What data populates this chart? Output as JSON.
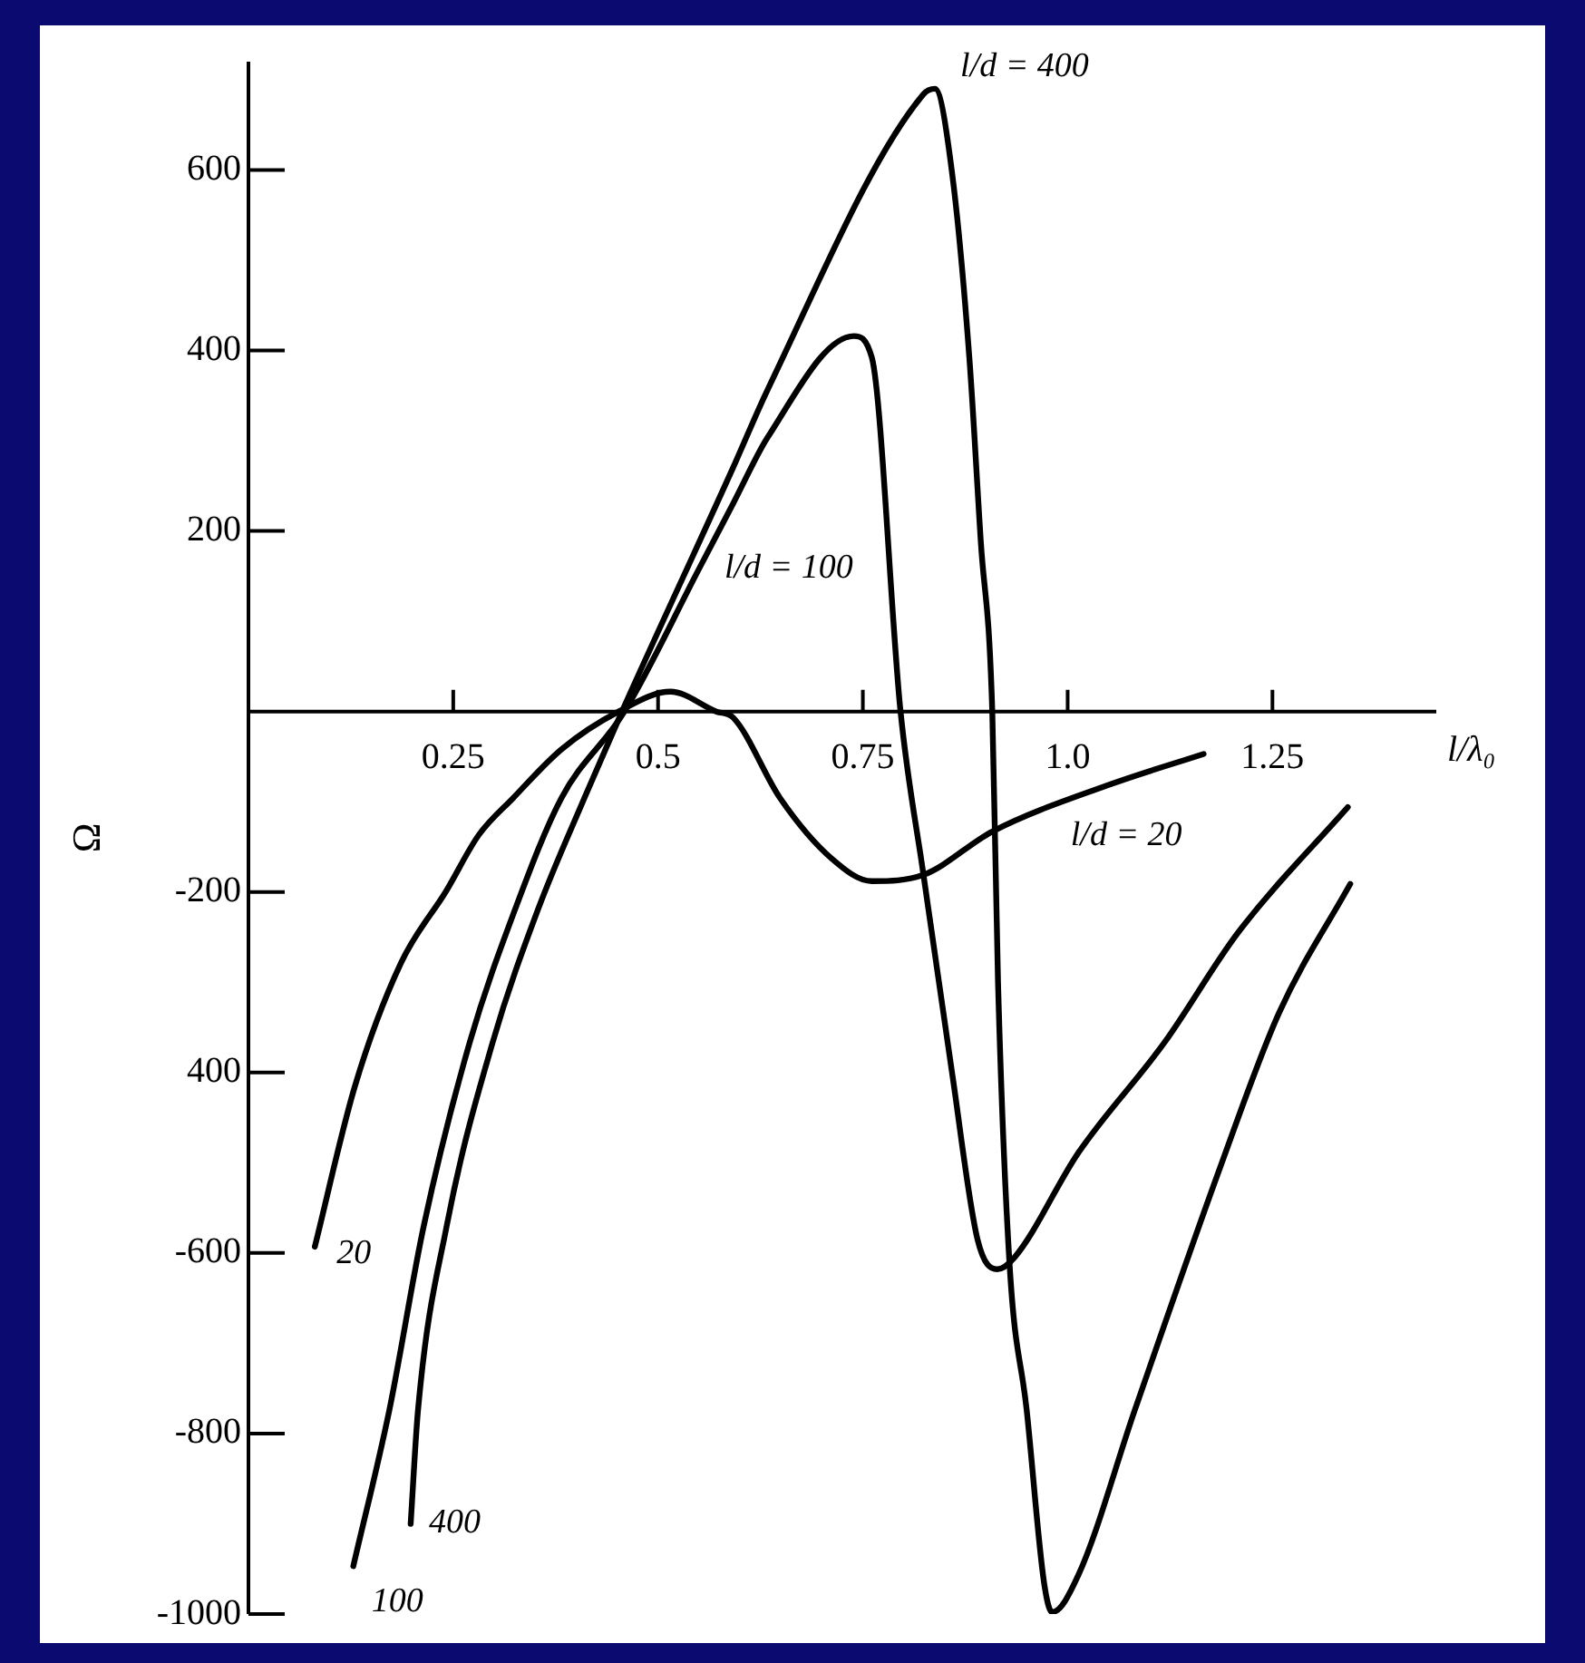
{
  "chart_data": {
    "type": "line",
    "xlabel": "l/λ₀",
    "ylabel": "Ω",
    "xlim": [
      0,
      1.45
    ],
    "ylim": [
      -1000,
      720
    ],
    "xticks": [
      0.25,
      0.5,
      0.75,
      {
        "value": 1,
        "label": "1.0"
      },
      1.25
    ],
    "yticks": [
      600,
      400,
      200,
      -200,
      {
        "value": -400,
        "label": "400"
      },
      -600,
      -800,
      -1000
    ],
    "grid": false,
    "legend": false,
    "marker": "none",
    "line_style": "solid",
    "series": [
      {
        "color": "#000000",
        "x": [
          0.081,
          0.13,
          0.186,
          0.242,
          0.281,
          0.323,
          0.382,
          0.452,
          0.515,
          0.571,
          0.592,
          0.649,
          0.712,
          0.761,
          0.824,
          0.908,
          1.048,
          1.166
        ],
        "values": [
          -593,
          -415,
          -279,
          -198,
          -137,
          -96,
          -42,
          0,
          22,
          0,
          -7,
          -96,
          -163,
          -188,
          -181,
          -133,
          -82,
          -47
        ]
      },
      {
        "color": "#000000",
        "x": [
          0.128,
          0.172,
          0.214,
          0.27,
          0.326,
          0.382,
          0.459,
          0.55,
          0.592,
          0.634,
          0.739,
          0.761,
          0.796,
          0.824,
          0.859,
          0.89,
          0.914,
          0.935,
          1.013,
          1.118,
          1.208,
          1.342
        ],
        "values": [
          -947,
          -774,
          -570,
          -367,
          -218,
          -96,
          0,
          158,
          231,
          304,
          416,
          392,
          0,
          -181,
          -401,
          -585,
          -618,
          -605,
          -489,
          -367,
          -245,
          -106
        ]
      },
      {
        "color": "#000000",
        "x": [
          0.198,
          0.207,
          0.242,
          0.298,
          0.354,
          0.41,
          0.456,
          0.592,
          0.634,
          0.824,
          0.838,
          0.859,
          0.88,
          0.894,
          0.908,
          0.915,
          0.929,
          0.95,
          0.971,
          0.981,
          1.013,
          1.082,
          1.187,
          1.258,
          1.345
        ],
        "values": [
          -900,
          -774,
          -570,
          -367,
          -218,
          -96,
          0,
          271,
          357,
          684,
          690,
          596,
          392,
          188,
          0,
          -300,
          -611,
          -774,
          -964,
          -998,
          -957,
          -774,
          -503,
          -334,
          -191
        ]
      }
    ],
    "annotations": [
      {
        "text": "l/d = 400",
        "x": 0.838,
        "y": 690
      },
      {
        "text": "l/d = 100",
        "x": 0.55,
        "y": 158
      },
      {
        "text": "l/d = 20",
        "x": 1.048,
        "y": -82
      },
      {
        "text": "20",
        "x": 0.081,
        "y": -593
      },
      {
        "text": "100",
        "x": 0.128,
        "y": -947
      },
      {
        "text": "400",
        "x": 0.198,
        "y": -900
      }
    ]
  }
}
